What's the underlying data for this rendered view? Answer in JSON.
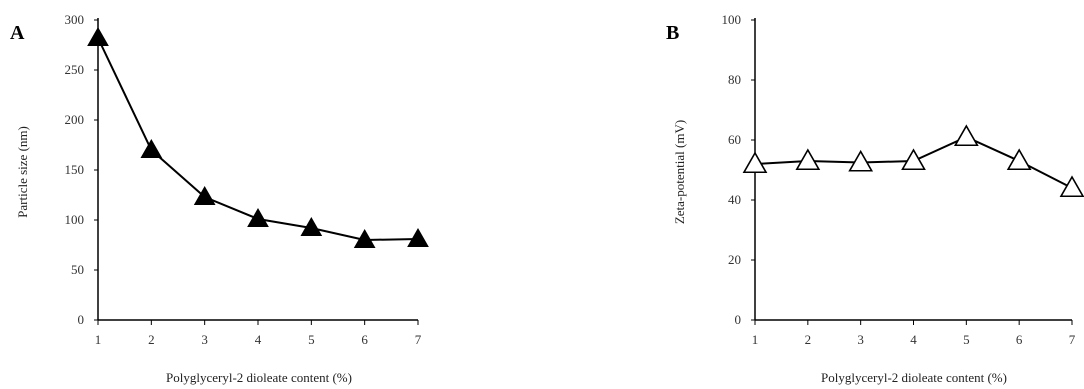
{
  "chart_data": [
    {
      "panel_label": "A",
      "type": "line",
      "marker": "filled-triangle",
      "x": [
        1,
        2,
        3,
        4,
        5,
        6,
        7
      ],
      "y": [
        282,
        170,
        123,
        101,
        92,
        80,
        81
      ],
      "xlabel": "Polyglyceryl-2 dioleate content (%)",
      "ylabel": "Particle size (nm)",
      "xlim": [
        1,
        7
      ],
      "ylim": [
        0,
        300
      ],
      "xticks": [
        "1",
        "2",
        "3",
        "4",
        "5",
        "6",
        "7"
      ],
      "yticks": [
        "0",
        "50",
        "100",
        "150",
        "200",
        "250",
        "300"
      ],
      "grid": false
    },
    {
      "panel_label": "B",
      "type": "line",
      "marker": "open-triangle",
      "x": [
        1,
        2,
        3,
        4,
        5,
        6,
        7
      ],
      "y": [
        52,
        53,
        52.5,
        53,
        61,
        53,
        44
      ],
      "xlabel": "Polyglyceryl-2 dioleate content (%)",
      "ylabel": "Zeta-potential (mV)",
      "xlim": [
        1,
        7
      ],
      "ylim": [
        0,
        100
      ],
      "xticks": [
        "1",
        "2",
        "3",
        "4",
        "5",
        "6",
        "7"
      ],
      "yticks": [
        "0",
        "20",
        "40",
        "60",
        "80",
        "100"
      ],
      "grid": false
    }
  ]
}
